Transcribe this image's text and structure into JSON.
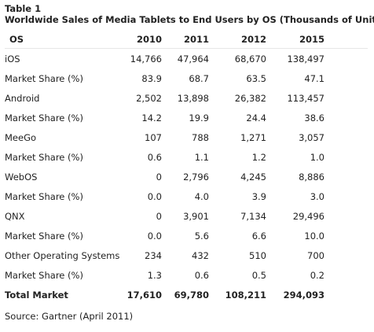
{
  "table_label": "Table 1",
  "table_title": "Worldwide Sales of Media Tablets to End Users by OS (Thousands of Units)",
  "columns": [
    "OS",
    "2010",
    "2011",
    "2012",
    "2015"
  ],
  "rows": [
    {
      "label": "iOS",
      "values": [
        "14,766",
        "47,964",
        "68,670",
        "138,497"
      ]
    },
    {
      "label": "Market Share (%)",
      "values": [
        "83.9",
        "68.7",
        "63.5",
        "47.1"
      ]
    },
    {
      "label": "Android",
      "values": [
        "2,502",
        "13,898",
        "26,382",
        "113,457"
      ]
    },
    {
      "label": "Market Share (%)",
      "values": [
        "14.2",
        "19.9",
        "24.4",
        "38.6"
      ]
    },
    {
      "label": "MeeGo",
      "values": [
        "107",
        "788",
        "1,271",
        "3,057"
      ]
    },
    {
      "label": "Market Share (%)",
      "values": [
        "0.6",
        "1.1",
        "1.2",
        "1.0"
      ]
    },
    {
      "label": "WebOS",
      "values": [
        "0",
        "2,796",
        "4,245",
        "8,886"
      ]
    },
    {
      "label": "Market Share (%)",
      "values": [
        "0.0",
        "4.0",
        "3.9",
        "3.0"
      ]
    },
    {
      "label": "QNX",
      "values": [
        "0",
        "3,901",
        "7,134",
        "29,496"
      ]
    },
    {
      "label": "Market Share (%)",
      "values": [
        "0.0",
        "5.6",
        "6.6",
        "10.0"
      ]
    },
    {
      "label": "Other Operating Systems",
      "values": [
        "234",
        "432",
        "510",
        "700"
      ]
    },
    {
      "label": "Market Share (%)",
      "values": [
        "1.3",
        "0.6",
        "0.5",
        "0.2"
      ]
    }
  ],
  "total": {
    "label": "Total Market",
    "values": [
      "17,610",
      "69,780",
      "108,211",
      "294,093"
    ]
  },
  "source": "Source: Gartner (April 2011)"
}
